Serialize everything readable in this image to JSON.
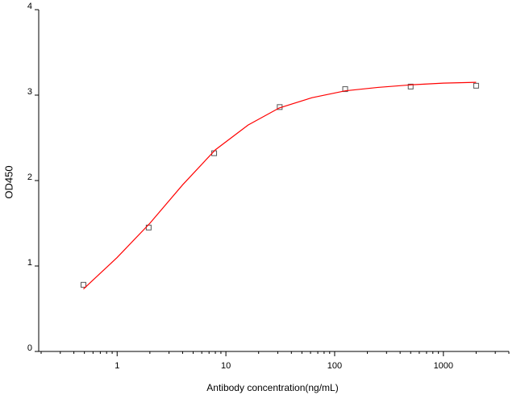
{
  "chart_data": {
    "type": "scatter",
    "xlabel": "Antibody concentration(ng/mL)",
    "ylabel": "OD450",
    "xscale": "log",
    "xlim": [
      0.2,
      4000
    ],
    "ylim": [
      0,
      4
    ],
    "xticks": [
      1,
      10,
      100,
      1000
    ],
    "xminorticks": [
      0.2,
      0.3,
      0.4,
      0.5,
      0.6,
      0.7,
      0.8,
      0.9,
      2,
      3,
      4,
      5,
      6,
      7,
      8,
      9,
      20,
      30,
      40,
      50,
      60,
      70,
      80,
      90,
      200,
      300,
      400,
      500,
      600,
      700,
      800,
      900,
      2000,
      3000,
      4000
    ],
    "yticks": [
      0,
      1,
      2,
      3,
      4
    ],
    "series": [
      {
        "color": "#555555",
        "marker": "square",
        "x": [
          0.49,
          1.95,
          7.8,
          31.25,
          125,
          500,
          2000
        ],
        "values": [
          0.78,
          1.45,
          2.32,
          2.86,
          3.07,
          3.1,
          3.11
        ]
      },
      {
        "color": "#ff0000",
        "marker": "line",
        "x": [
          0.49,
          1,
          2,
          4,
          8,
          16,
          31,
          62,
          125,
          250,
          500,
          1000,
          2000
        ],
        "values": [
          0.73,
          1.1,
          1.5,
          1.95,
          2.36,
          2.65,
          2.85,
          2.97,
          3.05,
          3.09,
          3.12,
          3.14,
          3.15
        ]
      }
    ]
  }
}
